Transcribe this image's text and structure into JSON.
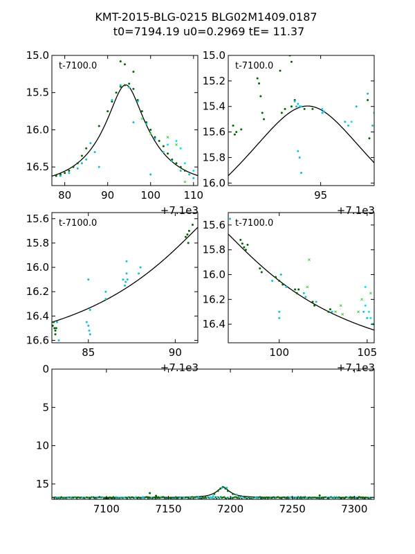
{
  "figure": {
    "title_line1": "KMT-2015-BLG-0215 BLG02M1409.0187",
    "title_line2": "t0=7194.19 u0=0.2969 tE=  11.37",
    "colors": {
      "dark_green": "#006400",
      "cyan": "#17becf",
      "light_cyan": "#00e5ee",
      "light_green": "#33cc33",
      "model": "#000000"
    }
  },
  "chart_data": [
    {
      "id": "p1",
      "type": "scatter",
      "label": "t-7100.0",
      "offset_text": "+7.1e3",
      "xlim": [
        77,
        111
      ],
      "ylim": [
        16.75,
        15.0
      ],
      "y_inverted": true,
      "xticks": [
        80,
        90,
        100,
        110
      ],
      "xtick_labels": [
        "80",
        "90",
        "100",
        "110"
      ],
      "yticks": [
        15.0,
        15.5,
        16.0,
        16.5
      ],
      "ytick_labels": [
        "15.0",
        "15.5",
        "16.0",
        "16.5"
      ],
      "model": {
        "t0": 94.19,
        "u0": 0.2969,
        "tE": 11.37,
        "m_base": 16.75
      },
      "series": [
        {
          "name": "dark-green",
          "color": "#006400",
          "points": [
            [
              78,
              16.62
            ],
            [
              79,
              16.6
            ],
            [
              80,
              16.58
            ],
            [
              81,
              16.55
            ],
            [
              82,
              16.5
            ],
            [
              83,
              16.45
            ],
            [
              84,
              16.35
            ],
            [
              85,
              16.25
            ],
            [
              88,
              15.95
            ],
            [
              90,
              15.75
            ],
            [
              91,
              15.62
            ],
            [
              92,
              15.5
            ],
            [
              93,
              15.42
            ],
            [
              94,
              15.4
            ],
            [
              95,
              15.38
            ],
            [
              96,
              15.45
            ],
            [
              97,
              15.6
            ],
            [
              98,
              15.75
            ],
            [
              99,
              15.9
            ],
            [
              100,
              16.0
            ],
            [
              101,
              16.1
            ],
            [
              102,
              16.15
            ],
            [
              103,
              16.22
            ],
            [
              104,
              16.32
            ],
            [
              105,
              16.4
            ],
            [
              106,
              16.45
            ],
            [
              107,
              16.5
            ],
            [
              108,
              16.55
            ],
            [
              94,
              15.12
            ],
            [
              93,
              15.08
            ],
            [
              96,
              15.22
            ]
          ]
        },
        {
          "name": "cyan",
          "color": "#17becf",
          "points": [
            [
              79,
              16.62
            ],
            [
              81,
              16.58
            ],
            [
              83,
              16.52
            ],
            [
              84,
              16.45
            ],
            [
              85,
              16.4
            ],
            [
              86,
              16.18
            ],
            [
              87,
              16.3
            ],
            [
              88,
              16.5
            ],
            [
              91,
              15.6
            ],
            [
              93,
              15.4
            ],
            [
              95,
              15.43
            ],
            [
              97,
              15.62
            ],
            [
              99,
              15.92
            ],
            [
              101,
              16.12
            ],
            [
              103,
              16.3
            ],
            [
              105,
              16.42
            ],
            [
              107,
              16.55
            ],
            [
              109,
              16.6
            ],
            [
              110,
              16.65
            ],
            [
              96,
              15.9
            ],
            [
              100,
              16.6
            ]
          ]
        },
        {
          "name": "light-cyan",
          "color": "#00e5ee",
          "points": [
            [
              104,
              16.2
            ],
            [
              106,
              16.15
            ],
            [
              107,
              16.25
            ],
            [
              108,
              16.45
            ],
            [
              110,
              16.55
            ]
          ]
        },
        {
          "name": "light-green",
          "color": "#33cc33",
          "points": [
            [
              98,
              15.85
            ],
            [
              100,
              16.05
            ],
            [
              104,
              16.1
            ],
            [
              106,
              16.2
            ],
            [
              108,
              16.7
            ]
          ]
        }
      ]
    },
    {
      "id": "p2",
      "type": "scatter",
      "label": "t-7100.0",
      "offset_text": "+7.1e3",
      "xlim": [
        89.3,
        98.3
      ],
      "ylim": [
        16.02,
        15.0
      ],
      "y_inverted": true,
      "xticks": [
        95
      ],
      "xtick_labels": [
        "95"
      ],
      "yticks": [
        15.0,
        15.2,
        15.4,
        15.6,
        15.8,
        16.0
      ],
      "ytick_labels": [
        "15.0",
        "15.2",
        "15.4",
        "15.6",
        "15.8",
        "16.0"
      ],
      "model": {
        "t0": 94.19,
        "u0": 0.2969,
        "tE": 11.37,
        "m_base": 16.75
      },
      "series": [
        {
          "name": "dark-green",
          "color": "#006400",
          "points": [
            [
              89.6,
              15.55
            ],
            [
              89.7,
              15.62
            ],
            [
              89.8,
              15.6
            ],
            [
              90.1,
              15.58
            ],
            [
              91.3,
              15.32
            ],
            [
              91.4,
              15.45
            ],
            [
              91.5,
              15.5
            ],
            [
              92.6,
              15.45
            ],
            [
              92.8,
              15.42
            ],
            [
              93.2,
              15.4
            ],
            [
              93.4,
              15.35
            ],
            [
              94.0,
              15.42
            ],
            [
              94.5,
              15.42
            ],
            [
              95.2,
              15.44
            ],
            [
              97.9,
              15.35
            ],
            [
              98.0,
              15.65
            ],
            [
              91.1,
              15.18
            ],
            [
              91.2,
              15.22
            ],
            [
              92.5,
              15.12
            ],
            [
              93.1,
              15.0
            ],
            [
              93.2,
              15.05
            ]
          ]
        },
        {
          "name": "cyan",
          "color": "#17becf",
          "points": [
            [
              93.4,
              15.36
            ],
            [
              93.5,
              15.4
            ],
            [
              93.6,
              15.38
            ],
            [
              93.7,
              15.4
            ],
            [
              93.8,
              15.4
            ],
            [
              93.6,
              15.75
            ],
            [
              93.7,
              15.8
            ],
            [
              93.8,
              15.92
            ],
            [
              95.1,
              15.45
            ],
            [
              95.2,
              15.44
            ],
            [
              96.5,
              15.52
            ],
            [
              96.7,
              15.55
            ],
            [
              97.2,
              15.4
            ],
            [
              97.9,
              15.3
            ],
            [
              98.2,
              15.55
            ],
            [
              98.3,
              15.45
            ]
          ]
        },
        {
          "name": "light-cyan",
          "color": "#00e5ee",
          "points": [
            [
              95.1,
              15.42
            ],
            [
              96.9,
              15.52
            ]
          ]
        }
      ]
    },
    {
      "id": "p3",
      "type": "scatter",
      "label": "t-7100.0",
      "offset_text": "+7.1e3",
      "xlim": [
        82.9,
        91.3
      ],
      "ylim": [
        16.62,
        15.55
      ],
      "y_inverted": true,
      "xticks": [
        85,
        90
      ],
      "xtick_labels": [
        "85",
        "90"
      ],
      "yticks": [
        15.6,
        15.8,
        16.0,
        16.2,
        16.4,
        16.6
      ],
      "ytick_labels": [
        "15.6",
        "15.8",
        "16.0",
        "16.2",
        "16.4",
        "16.6"
      ],
      "model": {
        "t0": 94.19,
        "u0": 0.2969,
        "tE": 11.37,
        "m_base": 16.75
      },
      "series": [
        {
          "name": "dark-green",
          "color": "#006400",
          "points": [
            [
              82.95,
              16.48
            ],
            [
              83.0,
              16.45
            ],
            [
              83.05,
              16.5
            ],
            [
              83.1,
              16.52
            ],
            [
              83.15,
              16.5
            ],
            [
              83.1,
              16.55
            ],
            [
              90.6,
              15.75
            ],
            [
              90.7,
              15.73
            ],
            [
              90.75,
              15.8
            ],
            [
              90.8,
              15.7
            ],
            [
              91.0,
              15.65
            ]
          ]
        },
        {
          "name": "cyan",
          "color": "#17becf",
          "points": [
            [
              83.2,
              16.45
            ],
            [
              83.3,
              16.6
            ],
            [
              84.9,
              16.45
            ],
            [
              85.0,
              16.48
            ],
            [
              85.05,
              16.52
            ],
            [
              85.1,
              16.55
            ],
            [
              85.1,
              16.35
            ],
            [
              85.0,
              16.1
            ],
            [
              86.0,
              16.2
            ],
            [
              86.0,
              16.26
            ],
            [
              87.0,
              16.1
            ],
            [
              87.1,
              16.15
            ],
            [
              87.15,
              16.12
            ],
            [
              87.2,
              16.05
            ],
            [
              87.25,
              16.1
            ],
            [
              87.2,
              15.95
            ],
            [
              87.9,
              16.05
            ],
            [
              88.0,
              16.0
            ]
          ]
        }
      ]
    },
    {
      "id": "p4",
      "type": "scatter",
      "label": "t-7100.0",
      "offset_text": "+7.1e3",
      "xlim": [
        97.1,
        105.4
      ],
      "ylim": [
        16.55,
        15.5
      ],
      "y_inverted": true,
      "xticks": [
        100,
        105
      ],
      "xtick_labels": [
        "100",
        "105"
      ],
      "yticks": [
        15.6,
        15.8,
        16.0,
        16.2,
        16.4
      ],
      "ytick_labels": [
        "15.6",
        "15.8",
        "16.0",
        "16.2",
        "16.4"
      ],
      "model": {
        "t0": 94.19,
        "u0": 0.2969,
        "tE": 11.37,
        "m_base": 16.75
      },
      "series": [
        {
          "name": "dark-green",
          "color": "#006400",
          "points": [
            [
              97.8,
              15.72
            ],
            [
              97.9,
              15.75
            ],
            [
              98.0,
              15.78
            ],
            [
              98.1,
              15.8
            ],
            [
              98.2,
              15.76
            ],
            [
              98.9,
              15.95
            ],
            [
              99.0,
              15.98
            ],
            [
              99.8,
              16.02
            ],
            [
              100.0,
              16.05
            ],
            [
              100.2,
              16.08
            ],
            [
              100.9,
              16.12
            ],
            [
              101.0,
              16.15
            ],
            [
              101.1,
              16.12
            ],
            [
              101.9,
              16.22
            ],
            [
              102.0,
              16.25
            ],
            [
              102.8,
              16.3
            ],
            [
              102.9,
              16.28
            ]
          ]
        },
        {
          "name": "cyan",
          "color": "#17becf",
          "points": [
            [
              97.2,
              15.55
            ],
            [
              99.6,
              16.05
            ],
            [
              100.1,
              16.0
            ],
            [
              100.4,
              16.1
            ],
            [
              100.0,
              16.3
            ],
            [
              100.0,
              16.35
            ],
            [
              101.4,
              16.15
            ],
            [
              101.5,
              16.18
            ],
            [
              102.1,
              16.22
            ],
            [
              103.0,
              16.3
            ],
            [
              104.8,
              16.3
            ],
            [
              105.0,
              16.35
            ]
          ]
        },
        {
          "name": "light-cyan",
          "color": "#00e5ee",
          "points": [
            [
              104.9,
              16.25
            ],
            [
              105.1,
              16.3
            ],
            [
              105.2,
              16.35
            ],
            [
              105.3,
              16.4
            ],
            [
              104.9,
              16.1
            ]
          ]
        },
        {
          "name": "light-green",
          "color": "#33cc33",
          "points": [
            [
              101.6,
              16.1
            ],
            [
              101.7,
              15.88
            ],
            [
              103.5,
              16.25
            ],
            [
              103.6,
              16.32
            ],
            [
              104.5,
              16.3
            ],
            [
              104.7,
              16.2
            ],
            [
              105.2,
              16.15
            ],
            [
              105.4,
              16.4
            ],
            [
              103.2,
              16.3
            ]
          ]
        }
      ]
    },
    {
      "id": "p5",
      "type": "scatter",
      "label": "",
      "offset_text": "",
      "xlim": [
        7056,
        7316
      ],
      "ylim": [
        17.0,
        0
      ],
      "y_inverted": true,
      "xticks": [
        7100,
        7150,
        7200,
        7250,
        7300
      ],
      "xtick_labels": [
        "7100",
        "7150",
        "7200",
        "7250",
        "7300"
      ],
      "yticks": [
        0,
        5,
        10,
        15
      ],
      "ytick_labels": [
        "0",
        "5",
        "10",
        "15"
      ],
      "model": {
        "t0": 7194.19,
        "u0": 0.2969,
        "tE": 11.37,
        "m_base": 16.75
      },
      "baseline_scatter": {
        "from": 7058,
        "to": 7314,
        "y": 16.8
      },
      "series": [
        {
          "name": "dark-green",
          "color": "#006400",
          "points": [
            [
              7135,
              16.2
            ],
            [
              7140,
              16.55
            ],
            [
              7187,
              16.3
            ],
            [
              7190,
              15.9
            ],
            [
              7192,
              15.6
            ],
            [
              7194,
              15.4
            ],
            [
              7196,
              15.6
            ],
            [
              7198,
              15.9
            ],
            [
              7202,
              16.3
            ],
            [
              7272,
              16.5
            ]
          ]
        },
        {
          "name": "cyan",
          "color": "#17becf",
          "points": [
            [
              7186,
              16.6
            ],
            [
              7193,
              15.5
            ],
            [
              7197,
              15.5
            ],
            [
              7205,
              16.4
            ]
          ]
        }
      ]
    }
  ]
}
